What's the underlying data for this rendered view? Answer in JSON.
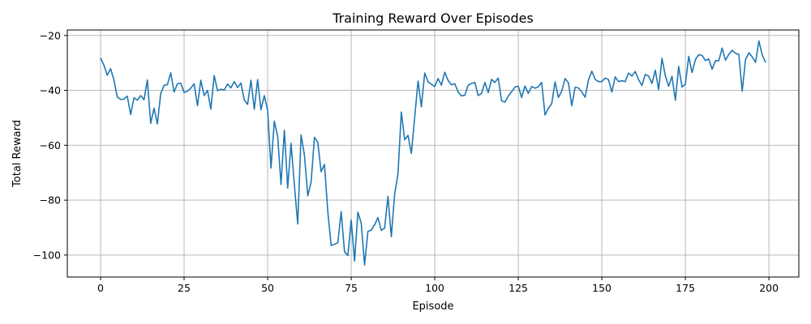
{
  "chart_data": {
    "type": "line",
    "title": "Training Reward Over Episodes",
    "xlabel": "Episode",
    "ylabel": "Total Reward",
    "xlim": [
      -9.95,
      208.95
    ],
    "ylim": [
      -108,
      -18
    ],
    "xticks": [
      0,
      25,
      50,
      75,
      100,
      125,
      150,
      175,
      200
    ],
    "yticks": [
      -100,
      -80,
      -60,
      -40,
      -20
    ],
    "grid": true,
    "line_color": "#1f77b4",
    "series": [
      {
        "x": [
          0,
          1,
          2,
          3,
          4,
          5,
          6,
          7,
          8,
          9,
          10,
          11,
          12,
          13,
          14,
          15,
          16,
          17,
          18,
          19,
          20,
          21,
          22,
          23,
          24,
          25,
          26,
          27,
          28,
          29,
          30,
          31,
          32,
          33,
          34,
          35,
          36,
          37,
          38,
          39,
          40,
          41,
          42,
          43,
          44,
          45,
          46,
          47,
          48,
          49,
          50,
          51,
          52,
          53,
          54,
          55,
          56,
          57,
          58,
          59,
          60,
          61,
          62,
          63,
          64,
          65,
          66,
          67,
          68,
          69,
          70,
          71,
          72,
          73,
          74,
          75,
          76,
          77,
          78,
          79,
          80,
          81,
          82,
          83,
          84,
          85,
          86,
          87,
          88,
          89,
          90,
          91,
          92,
          93,
          94,
          95,
          96,
          97,
          98,
          99,
          100,
          101,
          102,
          103,
          104,
          105,
          106,
          107,
          108,
          109,
          110,
          111,
          112,
          113,
          114,
          115,
          116,
          117,
          118,
          119,
          120,
          121,
          122,
          123,
          124,
          125,
          126,
          127,
          128,
          129,
          130,
          131,
          132,
          133,
          134,
          135,
          136,
          137,
          138,
          139,
          140,
          141,
          142,
          143,
          144,
          145,
          146,
          147,
          148,
          149,
          150,
          151,
          152,
          153,
          154,
          155,
          156,
          157,
          158,
          159,
          160,
          161,
          162,
          163,
          164,
          165,
          166,
          167,
          168,
          169,
          170,
          171,
          172,
          173,
          174,
          175,
          176,
          177,
          178,
          179,
          180,
          181,
          182,
          183,
          184,
          185,
          186,
          187,
          188,
          189,
          190,
          191,
          192,
          193,
          194,
          195,
          196,
          197,
          198,
          199
        ],
        "y": [
          -28.2,
          -30.8,
          -34.5,
          -32.1,
          -36.2,
          -42.4,
          -43.3,
          -43.2,
          -42.1,
          -48.8,
          -42.7,
          -43.6,
          -41.9,
          -43.4,
          -36.2,
          -52.0,
          -46.5,
          -52.2,
          -41.2,
          -38.2,
          -37.9,
          -33.6,
          -40.6,
          -37.6,
          -37.4,
          -40.8,
          -40.3,
          -39.2,
          -37.6,
          -45.6,
          -36.3,
          -41.9,
          -40.0,
          -46.8,
          -34.6,
          -40.1,
          -39.6,
          -39.9,
          -37.7,
          -39.1,
          -36.8,
          -39.0,
          -37.3,
          -43.5,
          -45.1,
          -36.3,
          -46.9,
          -36.1,
          -47.1,
          -41.9,
          -47.3,
          -68.3,
          -51.2,
          -56.8,
          -74.3,
          -54.5,
          -75.6,
          -59.3,
          -74.5,
          -88.7,
          -56.2,
          -63.5,
          -78.4,
          -73.5,
          -57.1,
          -58.9,
          -69.6,
          -67.0,
          -84.2,
          -96.5,
          -96.1,
          -95.5,
          -84.2,
          -98.8,
          -100.2,
          -87.2,
          -102.2,
          -84.4,
          -88.4,
          -103.6,
          -91.4,
          -90.9,
          -89.0,
          -86.3,
          -91.0,
          -90.2,
          -78.6,
          -93.3,
          -77.8,
          -70.4,
          -47.9,
          -58.0,
          -56.4,
          -63.0,
          -49.8,
          -36.6,
          -46.0,
          -33.7,
          -36.9,
          -37.8,
          -38.6,
          -35.7,
          -38.1,
          -33.4,
          -36.4,
          -38.0,
          -37.6,
          -40.6,
          -42.0,
          -41.8,
          -38.1,
          -37.5,
          -37.1,
          -41.9,
          -41.1,
          -37.1,
          -40.8,
          -36.0,
          -37.1,
          -35.5,
          -43.8,
          -44.3,
          -42.1,
          -40.5,
          -38.8,
          -38.5,
          -42.6,
          -38.4,
          -41.1,
          -38.6,
          -39.2,
          -38.7,
          -37.1,
          -49.0,
          -46.5,
          -44.9,
          -36.9,
          -42.6,
          -40.3,
          -35.7,
          -37.2,
          -45.6,
          -38.9,
          -39.1,
          -40.6,
          -42.5,
          -36.2,
          -33.0,
          -36.0,
          -36.8,
          -36.8,
          -35.5,
          -36.1,
          -40.6,
          -35.1,
          -36.8,
          -36.5,
          -36.8,
          -33.7,
          -34.8,
          -33.1,
          -36.1,
          -38.2,
          -34.2,
          -34.8,
          -37.5,
          -32.7,
          -39.7,
          -28.3,
          -34.7,
          -38.5,
          -34.9,
          -43.6,
          -31.3,
          -38.8,
          -37.7,
          -27.6,
          -33.5,
          -28.8,
          -27.0,
          -27.3,
          -29.1,
          -28.6,
          -32.3,
          -29.2,
          -29.2,
          -24.6,
          -29.0,
          -26.9,
          -25.4,
          -26.5,
          -26.9,
          -40.3,
          -28.8,
          -26.3,
          -27.8,
          -29.8,
          -22.0,
          -27.1,
          -29.9
        ]
      }
    ]
  }
}
